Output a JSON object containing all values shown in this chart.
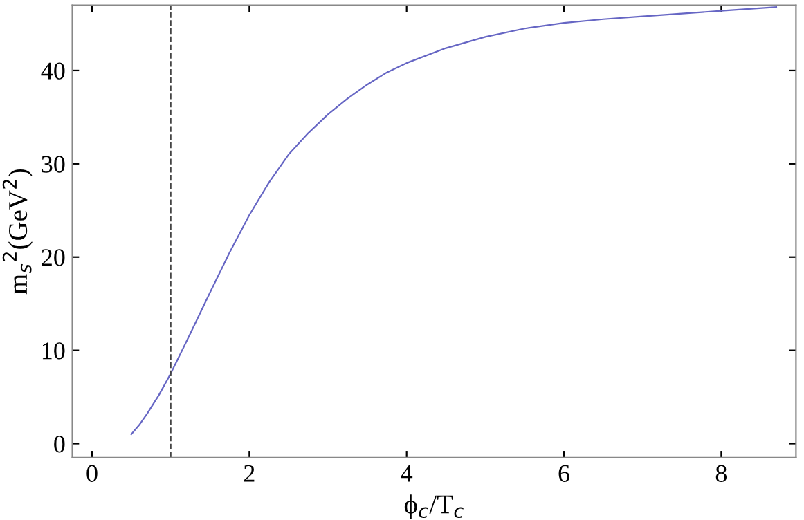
{
  "chart_data": {
    "type": "line",
    "xlabel": "ϕ$_{c}$/T$_{c}$",
    "ylabel": "m$_{s}$$^{2}$(GeV$^{2}$)",
    "series": [
      {
        "color": "#6666c4",
        "x": [
          0.5,
          0.6,
          0.7,
          0.85,
          1.0,
          1.25,
          1.5,
          1.75,
          2.0,
          2.25,
          2.5,
          2.75,
          3.0,
          3.25,
          3.5,
          3.75,
          4.0,
          4.5,
          5.0,
          5.5,
          6.0,
          6.5,
          7.0,
          7.5,
          8.0,
          8.7
        ],
        "values": [
          1.0,
          2.0,
          3.2,
          5.2,
          7.5,
          11.8,
          16.2,
          20.5,
          24.5,
          28.0,
          31.0,
          33.3,
          35.3,
          37.0,
          38.5,
          39.8,
          40.8,
          42.4,
          43.6,
          44.5,
          45.1,
          45.5,
          45.8,
          46.1,
          46.4,
          46.8
        ]
      }
    ],
    "ref_lines": [
      {
        "axis": "x",
        "value": 1,
        "line_style": "dashed",
        "color": "#444444"
      }
    ],
    "xlim": [
      -0.25,
      8.95
    ],
    "ylim": [
      -1.5,
      47
    ],
    "xticks": [
      0,
      2,
      4,
      6,
      8
    ],
    "yticks": [
      0,
      10,
      20,
      30,
      40
    ],
    "grid": false,
    "legend": false,
    "line_style": "solid",
    "marker": "none"
  }
}
